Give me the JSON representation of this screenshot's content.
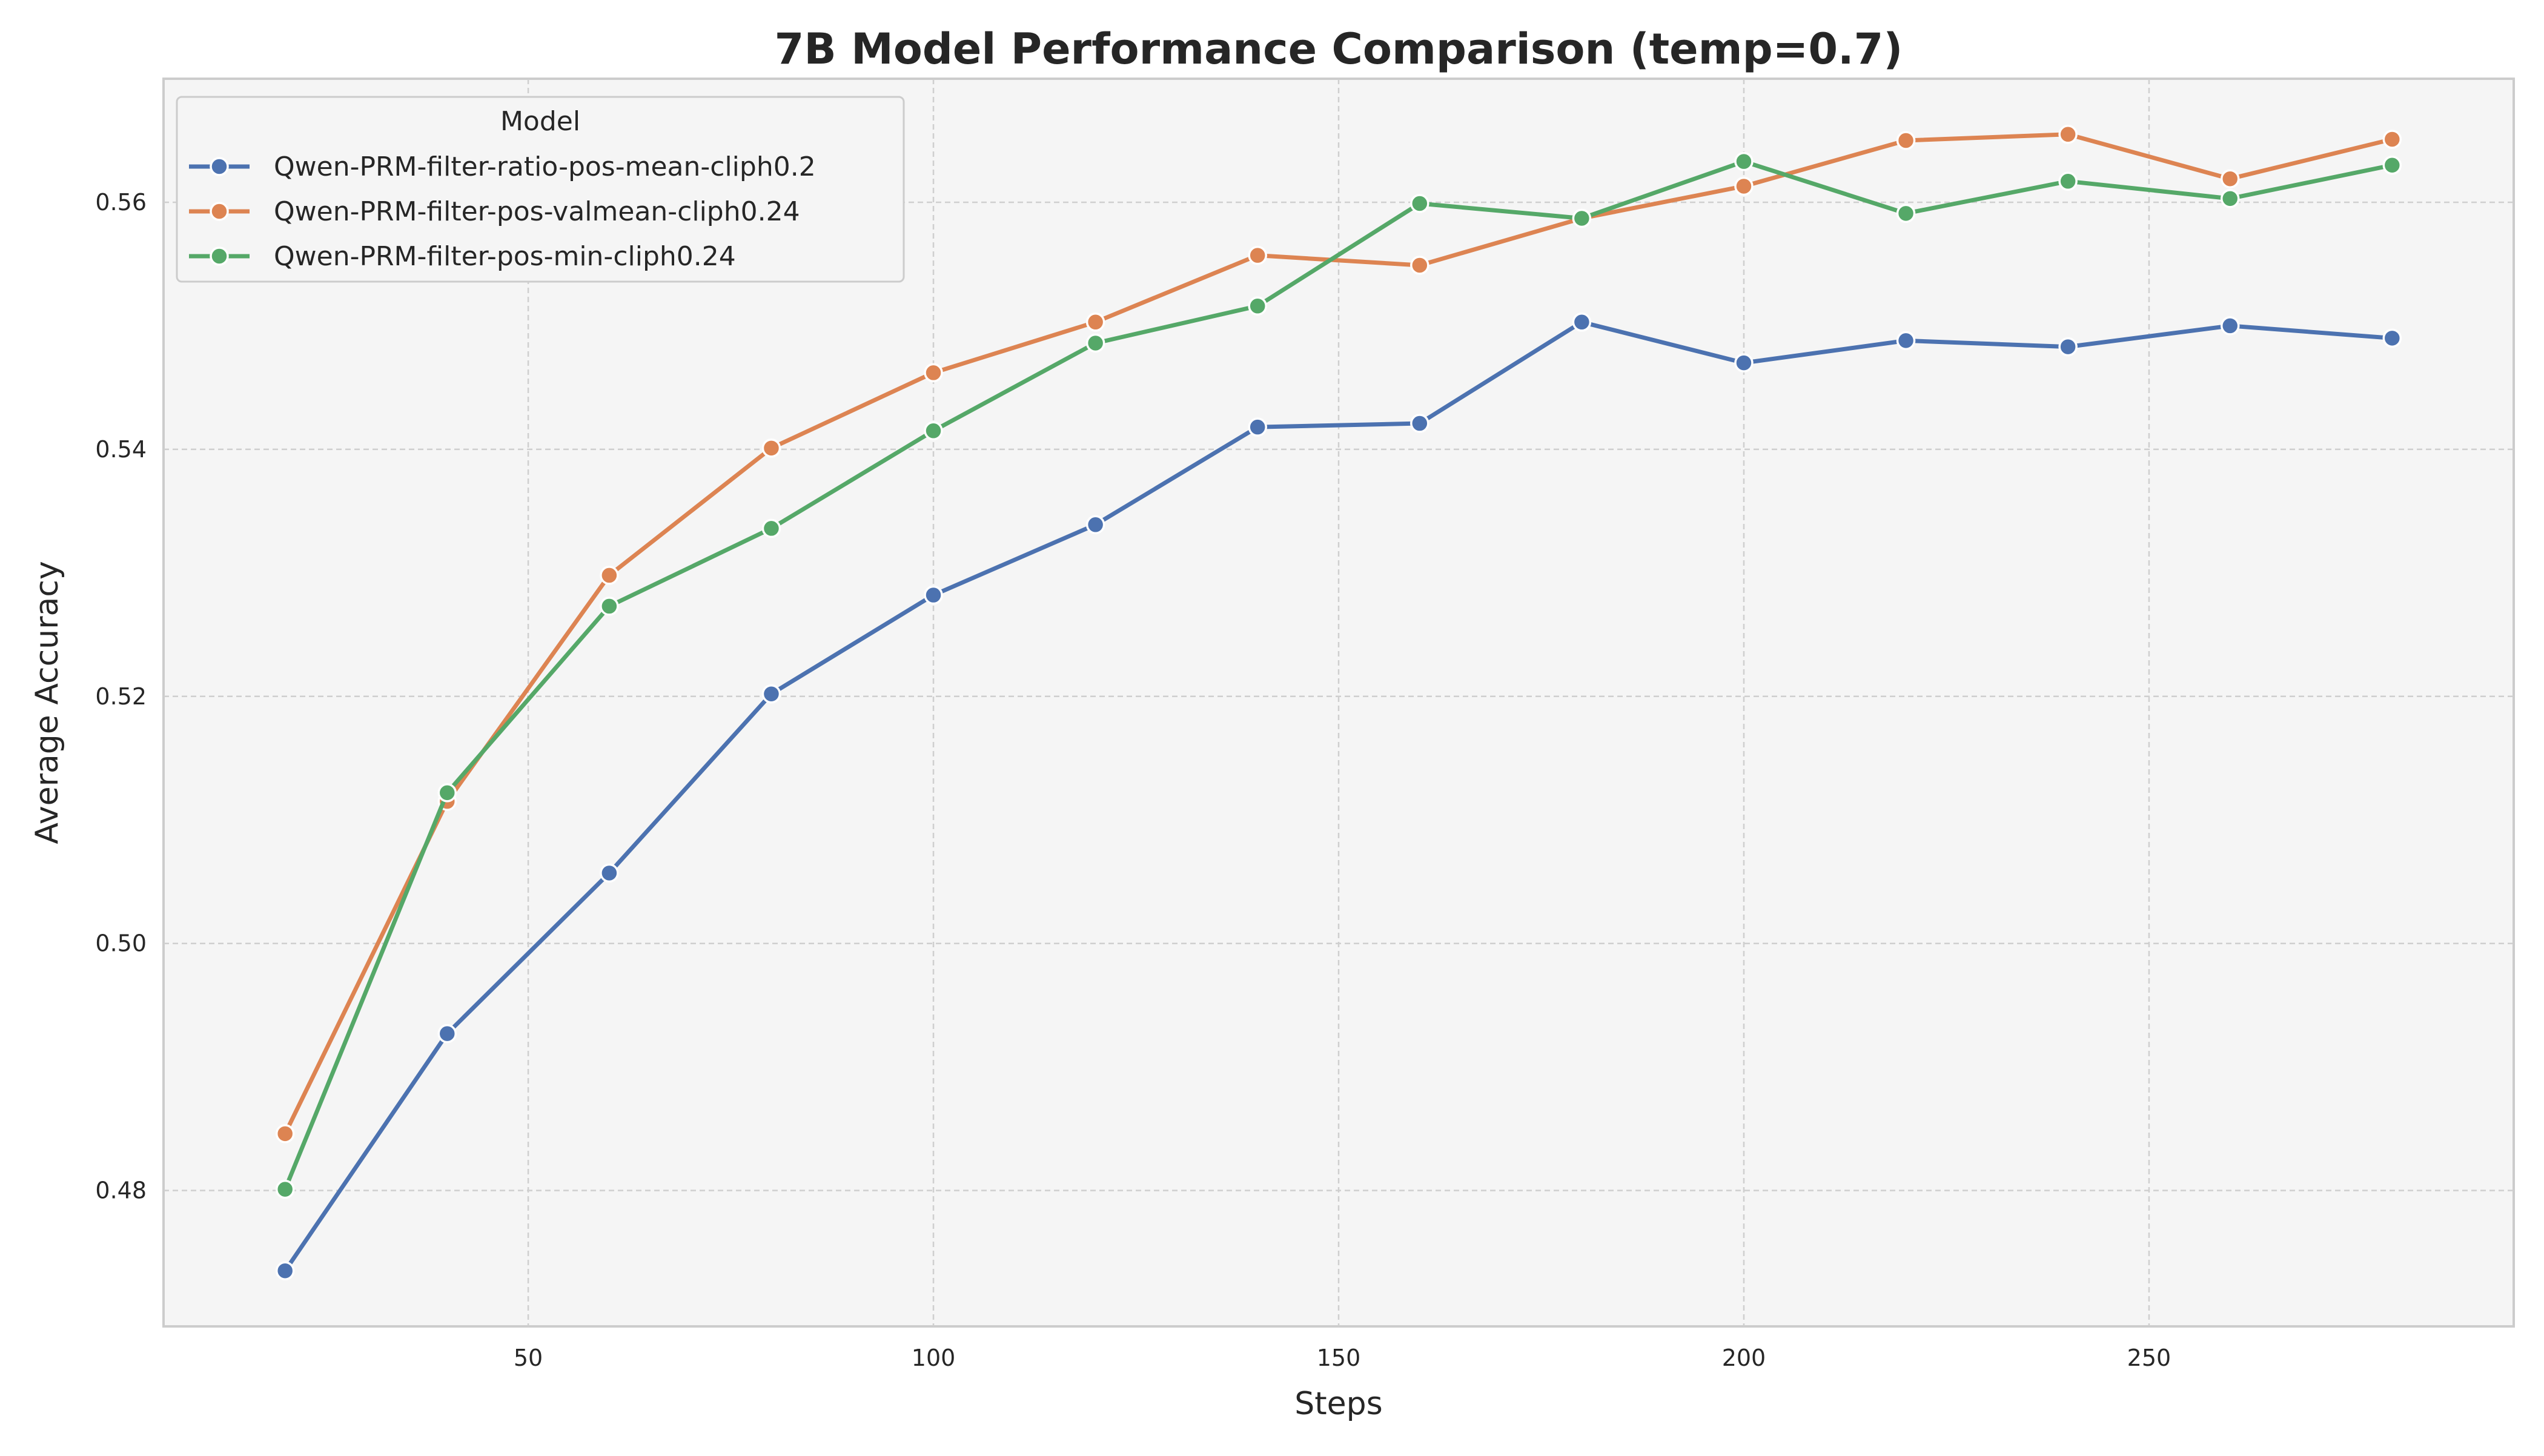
{
  "chart_data": {
    "type": "line",
    "title": "7B Model Performance Comparison (temp=0.7)",
    "xlabel": "Steps",
    "ylabel": "Average Accuracy",
    "xlim": [
      5,
      295
    ],
    "ylim": [
      0.469,
      0.57
    ],
    "xticks": [
      50,
      100,
      150,
      200,
      250
    ],
    "yticks": [
      0.48,
      0.5,
      0.52,
      0.54,
      0.56
    ],
    "ytick_labels": [
      "0.48",
      "0.50",
      "0.52",
      "0.54",
      "0.56"
    ],
    "grid": true,
    "background": "#f5f5f5",
    "legend": {
      "title": "Model",
      "position": "top-left"
    },
    "x": [
      20,
      40,
      60,
      80,
      100,
      120,
      140,
      160,
      180,
      200,
      220,
      240,
      260,
      280
    ],
    "series": [
      {
        "name": "Qwen-PRM-filter-ratio-pos-mean-cliph0.2",
        "color": "#4c72b0",
        "values": [
          0.4735,
          0.4927,
          0.5057,
          0.5202,
          0.5282,
          0.5339,
          0.5418,
          0.5421,
          0.5503,
          0.547,
          0.5488,
          0.5483,
          0.55,
          0.549
        ]
      },
      {
        "name": "Qwen-PRM-filter-pos-valmean-cliph0.24",
        "color": "#dd8452",
        "values": [
          0.4846,
          0.5115,
          0.5298,
          0.5401,
          0.5462,
          0.5503,
          0.5557,
          0.5549,
          0.5587,
          0.5613,
          0.565,
          0.5655,
          0.5619,
          0.5651
        ]
      },
      {
        "name": "Qwen-PRM-filter-pos-min-cliph0.24",
        "color": "#55a868",
        "values": [
          0.4801,
          0.5122,
          0.5273,
          0.5336,
          0.5415,
          0.5486,
          0.5516,
          0.5599,
          0.5587,
          0.5633,
          0.5591,
          0.5617,
          0.5603,
          0.563
        ]
      }
    ]
  }
}
